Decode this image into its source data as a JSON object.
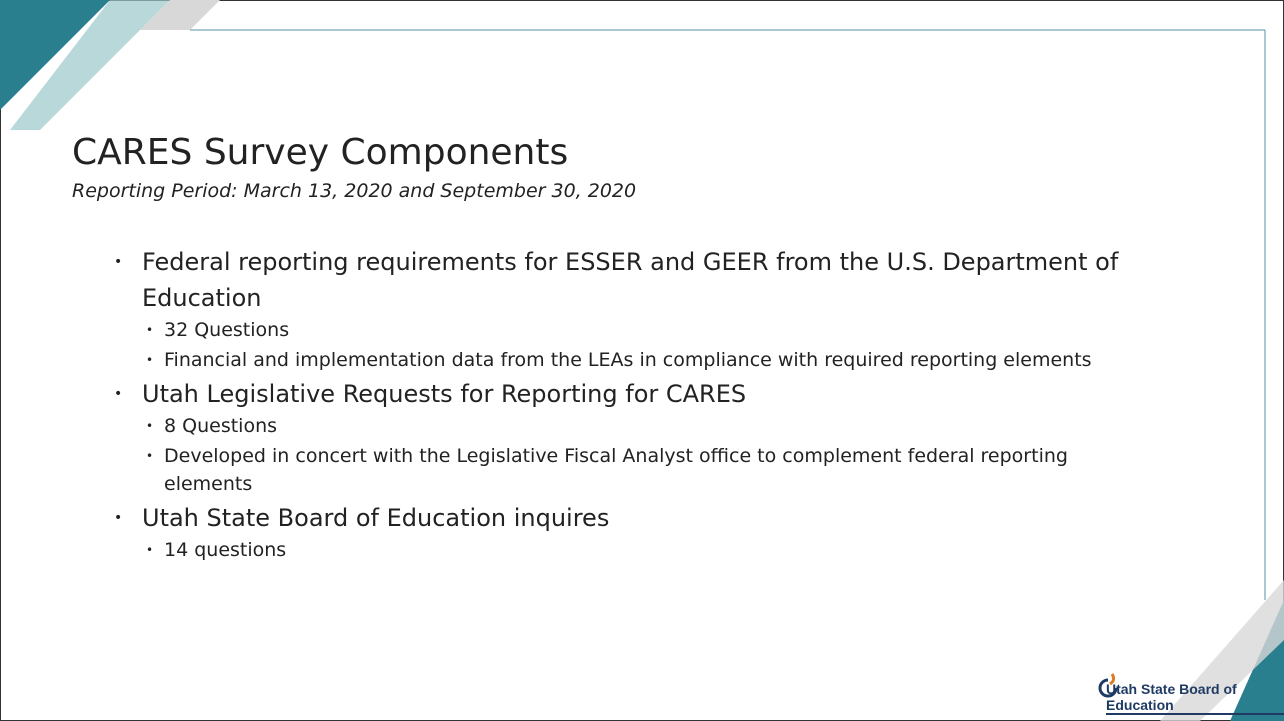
{
  "title": "CARES Survey Components",
  "subtitle": "Reporting Period: March 13, 2020 and September 30, 2020",
  "bullets": [
    {
      "text": "Federal reporting requirements for ESSER and GEER from the U.S. Department of Education",
      "items": [
        "32 Questions",
        "Financial and implementation data from the LEAs in compliance with required reporting elements"
      ]
    },
    {
      "text": "Utah Legislative Requests for Reporting for CARES",
      "items": [
        "8 Questions",
        "Developed in concert with the Legislative Fiscal Analyst office to complement federal reporting elements"
      ]
    },
    {
      "text": "Utah State Board of Education inquires",
      "items": [
        "14 questions"
      ]
    }
  ],
  "logo": "Utah State Board of Education"
}
